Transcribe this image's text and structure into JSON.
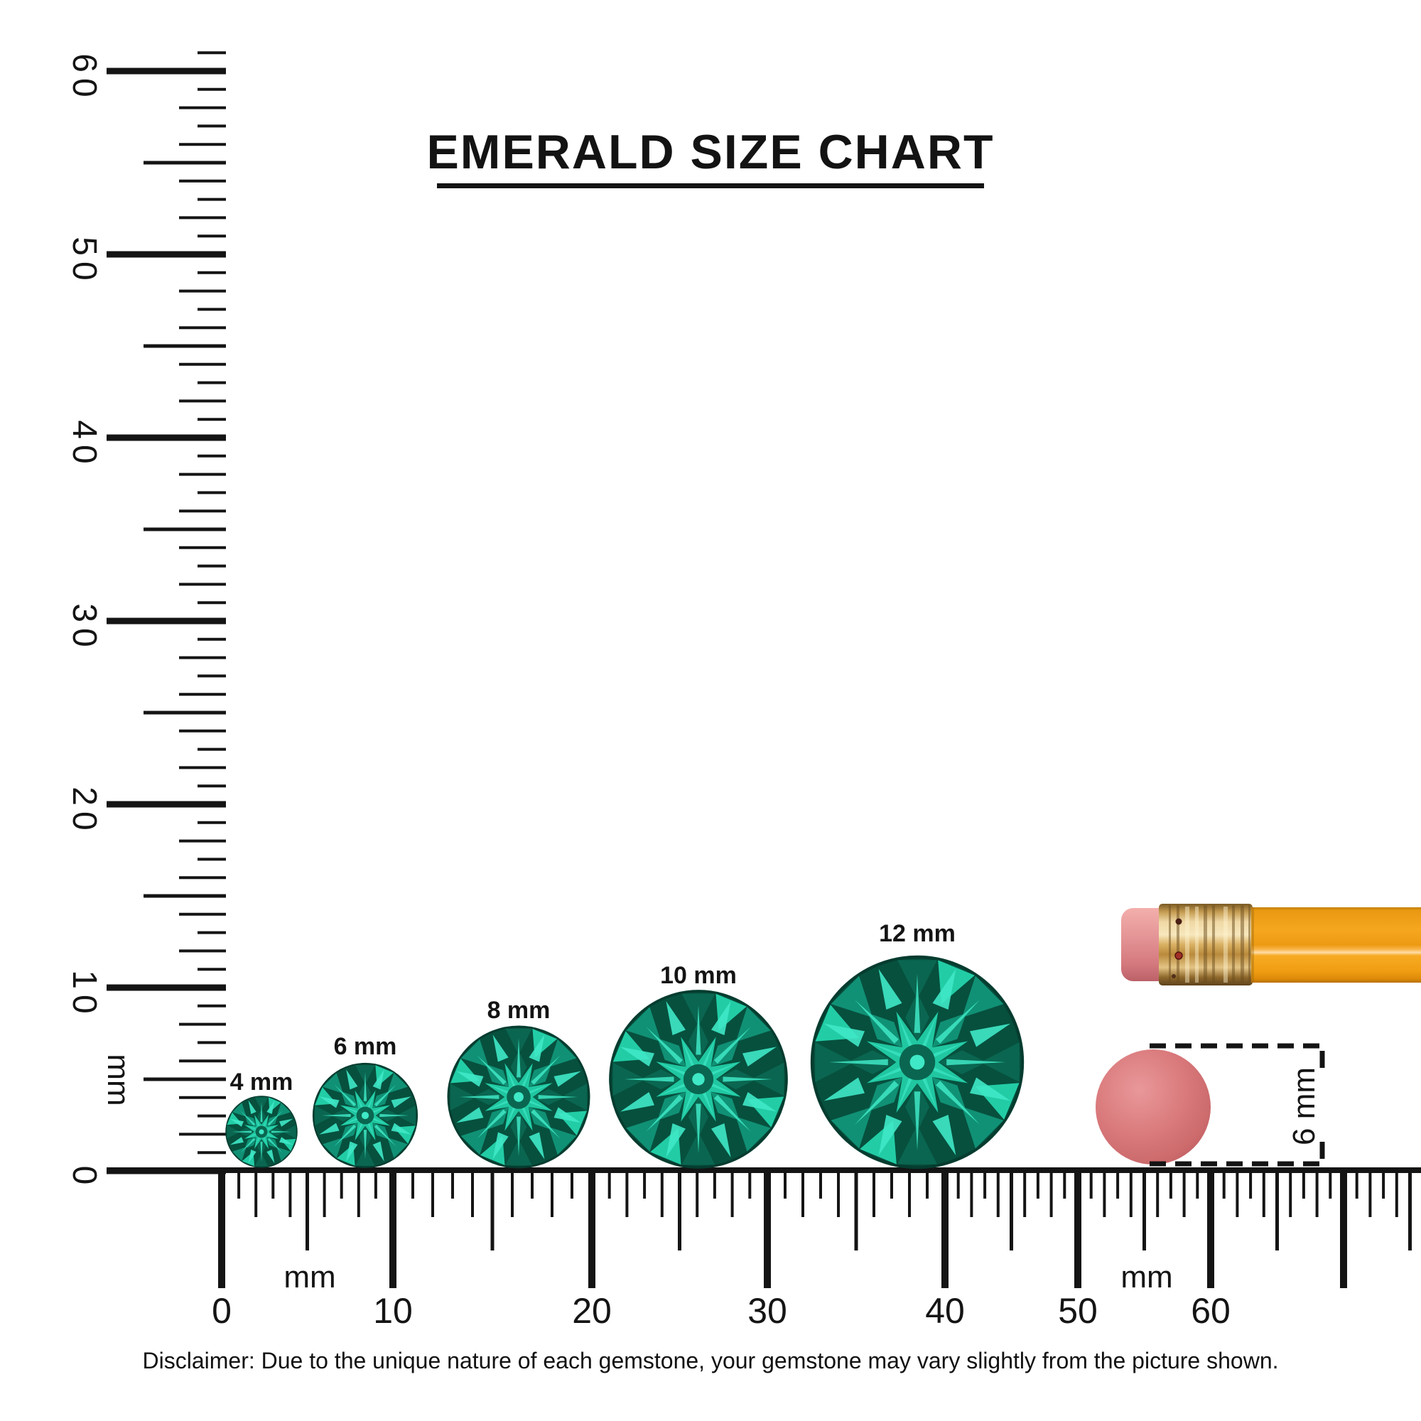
{
  "title": {
    "text": "EMERALD SIZE CHART"
  },
  "disclaimer": {
    "text": "Disclaimer: Due to the unique nature of each gemstone, your gemstone may vary slightly from the picture shown."
  },
  "vertical_ruler": {
    "unit": "mm",
    "tick_labels": [
      "0",
      "10",
      "20",
      "30",
      "40",
      "50",
      "60"
    ]
  },
  "horizontal_ruler": {
    "unit_labels": [
      "mm",
      "mm"
    ],
    "tick_labels": [
      "0",
      "10",
      "20",
      "30",
      "40",
      "50",
      "60"
    ]
  },
  "gems": [
    {
      "label": "4 mm",
      "size_mm": 4
    },
    {
      "label": "6 mm",
      "size_mm": 6
    },
    {
      "label": "8 mm",
      "size_mm": 8
    },
    {
      "label": "10 mm",
      "size_mm": 10
    },
    {
      "label": "12 mm",
      "size_mm": 12
    }
  ],
  "reference_objects": {
    "pencil": {
      "name": "pencil with eraser tip"
    },
    "eraser_disc": {
      "name": "round eraser",
      "annotation_label": "6 mm"
    }
  },
  "colors": {
    "ink": "#141414",
    "emerald": {
      "bright": "#3FE8C6",
      "light": "#22CDA6",
      "mid": "#109175",
      "dark": "#0A6650",
      "deep": "#07503E",
      "darkest": "#053C2F"
    },
    "pencil": {
      "body": "#F5A71F",
      "body_shadow": "#B87105",
      "body_highlight": "#FFDEA8",
      "ferrule_light": "#F7E7BD",
      "ferrule_mid": "#D9B063",
      "ferrule_dark": "#6B4E1E",
      "eraser_light": "#F3AFAC",
      "eraser_dark": "#BC6168"
    },
    "eraser_disc": {
      "base": "#D9797B",
      "light": "#E9989A",
      "shade": "#C05F62"
    }
  }
}
